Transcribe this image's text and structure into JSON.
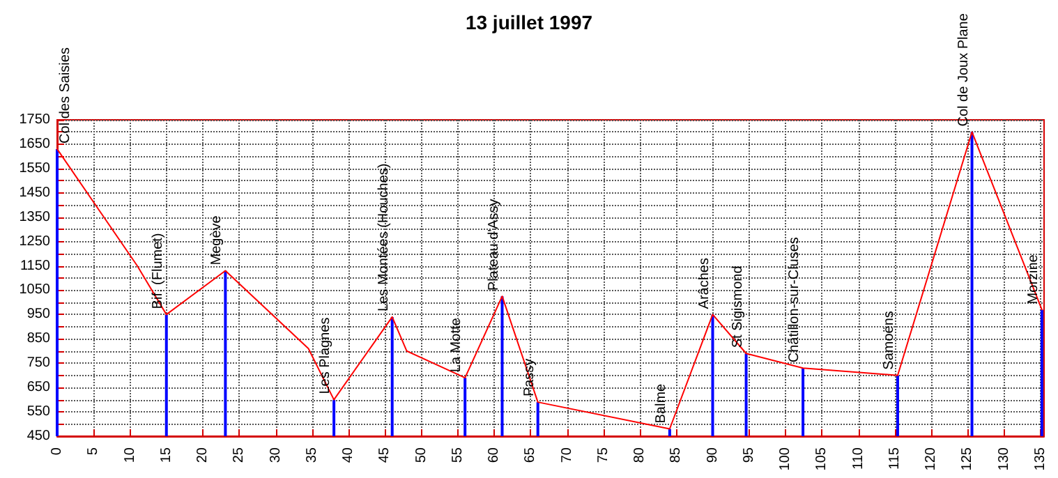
{
  "chart_data": {
    "type": "line",
    "title": "13 juillet 1997",
    "series": [
      {
        "color": "#ff0000",
        "x": [
          0,
          11,
          15,
          23.1,
          34.5,
          38,
          46,
          48,
          56,
          61.1,
          66,
          84.1,
          90,
          94.6,
          102.4,
          115.4,
          125.6,
          135.2
        ],
        "values": [
          1630,
          1150,
          950,
          1130,
          810,
          600,
          940,
          800,
          690,
          1025,
          590,
          480,
          950,
          790,
          730,
          700,
          1700,
          970
        ]
      },
      {
        "type": "bar",
        "color": "#0000ff",
        "x": [
          0,
          15,
          23.1,
          38,
          46,
          56,
          61.1,
          66,
          84.1,
          90,
          94.6,
          102.4,
          115.4,
          125.6,
          135.2
        ],
        "values": [
          1630,
          950,
          1130,
          600,
          940,
          690,
          1025,
          590,
          480,
          950,
          790,
          730,
          700,
          1700,
          970
        ]
      }
    ],
    "xlim": [
      0,
      135.5
    ],
    "xticks": [
      0,
      5,
      10,
      15,
      20,
      25,
      30,
      35,
      40,
      45,
      50,
      55,
      60,
      65,
      70,
      75,
      80,
      85,
      90,
      95,
      100,
      105,
      110,
      115,
      120,
      125,
      130,
      135
    ],
    "ylim": [
      450,
      1750
    ],
    "yticks": [
      450,
      {
        "value": 500,
        "label": null
      },
      550,
      {
        "value": 600,
        "label": null
      },
      650,
      {
        "value": 700,
        "label": null
      },
      750,
      {
        "value": 800,
        "label": null
      },
      850,
      {
        "value": 900,
        "label": null
      },
      950,
      {
        "value": 1000,
        "label": null
      },
      1050,
      {
        "value": 1100,
        "label": null
      },
      1150,
      {
        "value": 1200,
        "label": null
      },
      1250,
      {
        "value": 1300,
        "label": null
      },
      1350,
      {
        "value": 1400,
        "label": null
      },
      1450,
      {
        "value": 1500,
        "label": null
      },
      1550,
      {
        "value": 1600,
        "label": null
      },
      1650,
      {
        "value": 1700,
        "label": null
      },
      1750
    ],
    "grid": true,
    "marker": "none",
    "line_style": "solid",
    "annotations": [
      {
        "text": "Col des Saisies",
        "x": 0,
        "y": 1630
      },
      {
        "text": "Bif. (Flumet)",
        "x": 15,
        "y": 950
      },
      {
        "text": "Megève",
        "x": 23.1,
        "y": 1130
      },
      {
        "text": "Les Plagnes",
        "x": 38,
        "y": 600
      },
      {
        "text": "Les Montées (Houches)",
        "x": 46,
        "y": 940
      },
      {
        "text": "La Motte",
        "x": 56,
        "y": 690
      },
      {
        "text": "Plateau d'Assy",
        "x": 61.1,
        "y": 1025
      },
      {
        "text": "Passy",
        "x": 66,
        "y": 590
      },
      {
        "text": "Balme",
        "x": 84.1,
        "y": 480
      },
      {
        "text": "Arâches",
        "x": 90,
        "y": 950
      },
      {
        "text": "St Sigismond",
        "x": 94.6,
        "y": 790
      },
      {
        "text": "Châtillon-sur-Cluses",
        "x": 102.4,
        "y": 730
      },
      {
        "text": "Samoëns",
        "x": 115.4,
        "y": 700
      },
      {
        "text": "Col de Joux Plane",
        "x": 125.6,
        "y": 1700
      },
      {
        "text": "Morzine",
        "x": 135.2,
        "y": 970
      }
    ]
  }
}
